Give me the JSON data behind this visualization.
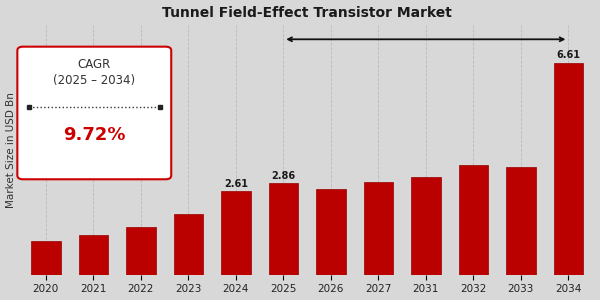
{
  "title": "Tunnel Field-Effect Transistor Market",
  "ylabel": "Market Size in USD Bn",
  "categories": [
    "2020",
    "2021",
    "2022",
    "2023",
    "2024",
    "2025",
    "2026",
    "2027",
    "2031",
    "2032",
    "2033",
    "2034"
  ],
  "values": [
    1.05,
    1.25,
    1.5,
    1.9,
    2.61,
    2.86,
    2.68,
    2.88,
    3.05,
    3.42,
    3.35,
    6.61
  ],
  "bar_color": "#bb0000",
  "bar_edge_color": "#990000",
  "labeled_bars": {
    "2024": "2.61",
    "2025": "2.86",
    "2034": "6.61"
  },
  "cagr_text_line1": "CAGR",
  "cagr_text_line2": "(2025 – 2034)",
  "cagr_value": "9.72%",
  "cagr_value_color": "#cc0000",
  "background_color": "#d8d8d8",
  "title_fontsize": 10,
  "axis_label_fontsize": 7.5,
  "tick_fontsize": 7.5,
  "bracket_color": "#111111",
  "grid_color": "#bbbbbb",
  "ylim_max": 7.8
}
